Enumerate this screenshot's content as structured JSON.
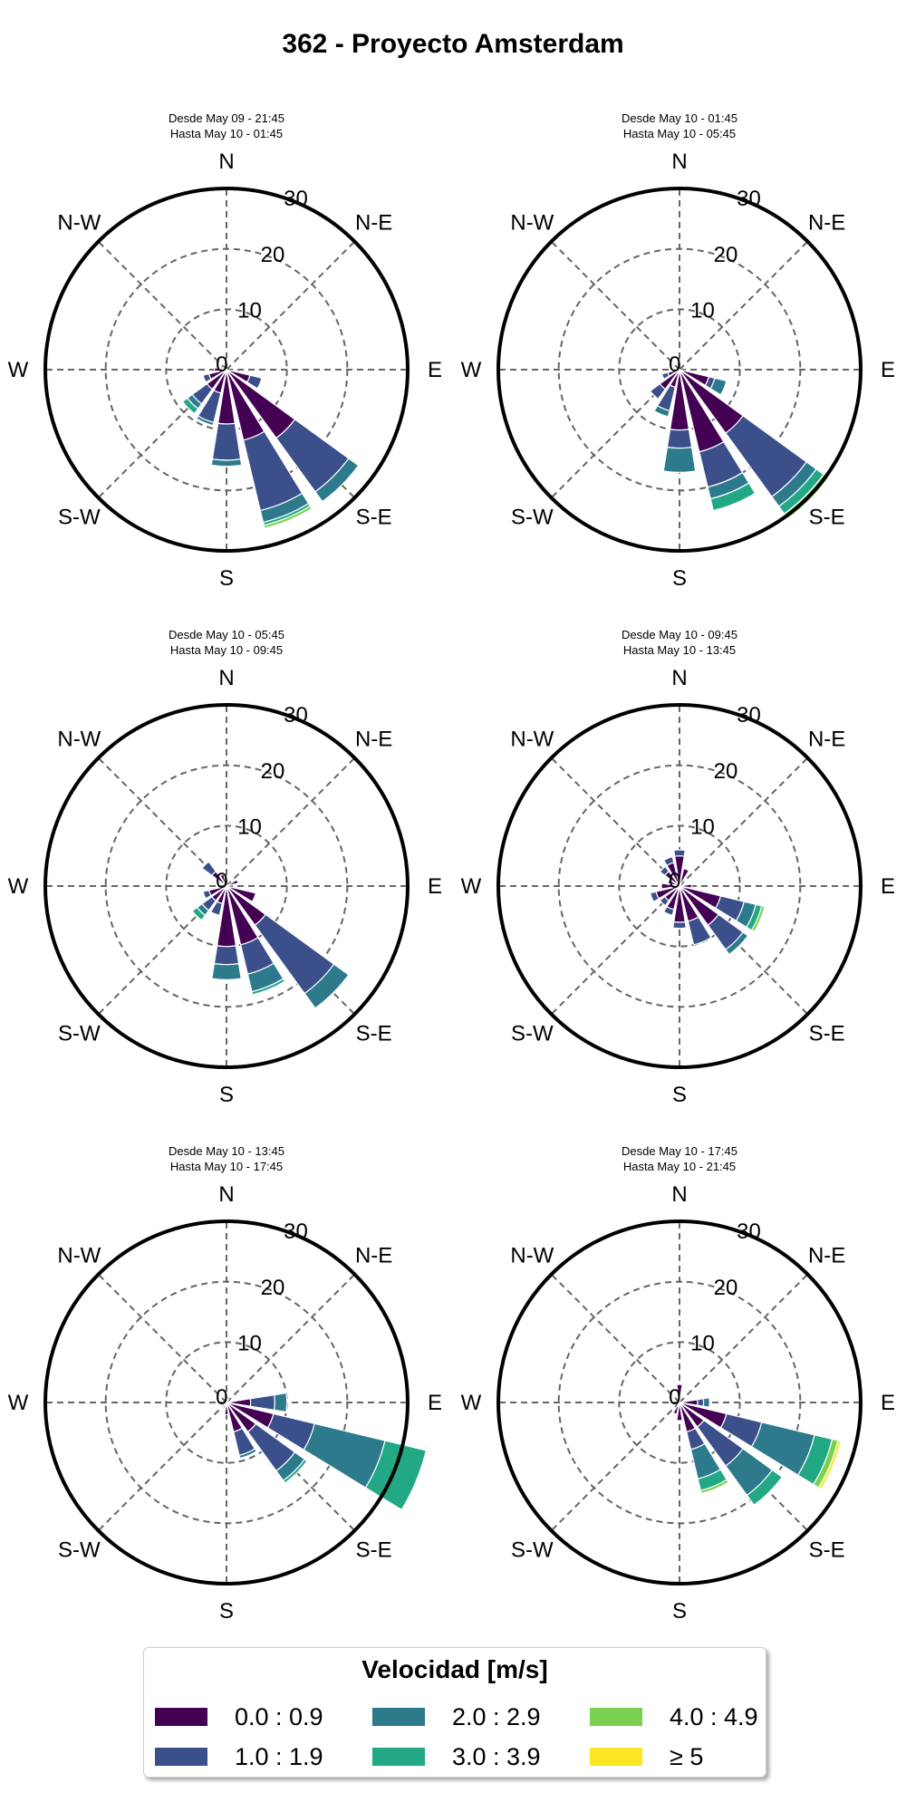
{
  "title": "362 - Proyecto Amsterdam",
  "colors": {
    "bins": [
      "#440154",
      "#3b4f8a",
      "#2c7a8c",
      "#22a884",
      "#7ad151",
      "#fde725"
    ],
    "grid": "#666666",
    "frame": "#000000"
  },
  "chart_data": [
    {
      "type": "windrose",
      "subtitle": [
        "Desde May 09 - 21:45",
        "Hasta May 10 - 01:45"
      ],
      "directions": [
        "N",
        "NNE",
        "NE",
        "ENE",
        "E",
        "ESE",
        "SE",
        "SSE",
        "S",
        "SSW",
        "SW",
        "WSW",
        "W",
        "WNW",
        "NW",
        "NNW"
      ],
      "rlim": [
        0,
        30
      ],
      "rticks": [
        "0",
        "10",
        "20",
        "30"
      ],
      "compass_labels": [
        "N",
        "N-E",
        "E",
        "S-E",
        "S",
        "S-W",
        "W",
        "N-W"
      ],
      "segments": {
        "ESE": [
          4,
          2
        ],
        "SE": [
          14,
          11,
          2
        ],
        "SSE": [
          12,
          12,
          2,
          0.5,
          0.5
        ],
        "S": [
          9,
          6,
          1
        ],
        "SSW": [
          4,
          5,
          0.5
        ],
        "SW": [
          4,
          3,
          1,
          1
        ],
        "WSW": [
          3,
          1
        ],
        "W": [
          2
        ],
        "WNW": [
          1
        ]
      }
    },
    {
      "type": "windrose",
      "subtitle": [
        "Desde May 10 - 01:45",
        "Hasta May 10 - 05:45"
      ],
      "directions": [
        "N",
        "NNE",
        "NE",
        "ENE",
        "E",
        "ESE",
        "SE",
        "SSE",
        "S",
        "SSW",
        "SW",
        "WSW",
        "W",
        "WNW",
        "NW",
        "NNW"
      ],
      "rlim": [
        0,
        30
      ],
      "rticks": [
        "0",
        "10",
        "20",
        "30"
      ],
      "compass_labels": [
        "N",
        "N-E",
        "E",
        "S-E",
        "S",
        "S-W",
        "W",
        "N-W"
      ],
      "segments": {
        "ESE": [
          5,
          1,
          2
        ],
        "SE": [
          13,
          13,
          2,
          1.5,
          1
        ],
        "SSE": [
          14,
          6,
          2,
          2
        ],
        "S": [
          10,
          3,
          4
        ],
        "SSW": [
          3,
          4,
          1
        ],
        "SW": [
          4,
          2
        ],
        "WSW": [
          2,
          1
        ],
        "W": [
          1
        ]
      }
    },
    {
      "type": "windrose",
      "subtitle": [
        "Desde May 10 - 05:45",
        "Hasta May 10 - 09:45"
      ],
      "directions": [
        "N",
        "NNE",
        "NE",
        "ENE",
        "E",
        "ESE",
        "SE",
        "SSE",
        "S",
        "SSW",
        "SW",
        "WSW",
        "W",
        "WNW",
        "NW",
        "NNW"
      ],
      "rlim": [
        0,
        30
      ],
      "rticks": [
        "0",
        "10",
        "20",
        "30"
      ],
      "compass_labels": [
        "N",
        "N-E",
        "E",
        "S-E",
        "S",
        "S-W",
        "W",
        "N-W"
      ],
      "segments": {
        "ENE": [
          2
        ],
        "ESE": [
          5
        ],
        "SE": [
          8,
          14,
          3
        ],
        "SSE": [
          10,
          5,
          3,
          0.5
        ],
        "S": [
          10,
          3,
          2.5
        ],
        "SSW": [
          3,
          2
        ],
        "SW": [
          3,
          2,
          1,
          1
        ],
        "WSW": [
          3,
          1
        ],
        "NW": [
          3,
          2
        ],
        "NNW": [
          2
        ]
      }
    },
    {
      "type": "windrose",
      "subtitle": [
        "Desde May 10 - 09:45",
        "Hasta May 10 - 13:45"
      ],
      "directions": [
        "N",
        "NNE",
        "NE",
        "ENE",
        "E",
        "ESE",
        "SE",
        "SSE",
        "S",
        "SSW",
        "SW",
        "WSW",
        "W",
        "WNW",
        "NW",
        "NNW"
      ],
      "rlim": [
        0,
        30
      ],
      "rticks": [
        "0",
        "10",
        "20",
        "30"
      ],
      "compass_labels": [
        "N",
        "N-E",
        "E",
        "S-E",
        "S",
        "S-W",
        "W",
        "N-W"
      ],
      "segments": {
        "NNE": [
          3
        ],
        "N": [
          5,
          1
        ],
        "NNW": [
          4,
          1
        ],
        "NW": [
          3,
          1
        ],
        "WNW": [
          2
        ],
        "W": [
          3
        ],
        "WSW": [
          4,
          1
        ],
        "SW": [
          3,
          1
        ],
        "SSW": [
          4,
          1
        ],
        "S": [
          6,
          1
        ],
        "SSE": [
          6,
          4
        ],
        "SE": [
          8,
          5,
          1
        ],
        "ESE": [
          7,
          4,
          2,
          1,
          0.5
        ],
        "E": [
          2
        ]
      }
    },
    {
      "type": "windrose",
      "subtitle": [
        "Desde May 10 - 13:45",
        "Hasta May 10 - 17:45"
      ],
      "directions": [
        "N",
        "NNE",
        "NE",
        "ENE",
        "E",
        "ESE",
        "SE",
        "SSE",
        "S",
        "SSW",
        "SW",
        "WSW",
        "W",
        "WNW",
        "NW",
        "NNW"
      ],
      "rlim": [
        0,
        30
      ],
      "rticks": [
        "0",
        "10",
        "20",
        "30"
      ],
      "compass_labels": [
        "N",
        "N-E",
        "E",
        "S-E",
        "S",
        "S-W",
        "W",
        "N-W"
      ],
      "segments": {
        "E": [
          4,
          4,
          2
        ],
        "ESE": [
          8,
          7,
          12,
          7
        ],
        "SE": [
          6,
          8,
          2,
          0.5
        ],
        "SSE": [
          5,
          4,
          0.5
        ],
        "S": [
          2
        ],
        "SSW": [
          1
        ],
        "SW": [
          1
        ],
        "NNE": [
          1
        ]
      }
    },
    {
      "type": "windrose",
      "subtitle": [
        "Desde May 10 - 17:45",
        "Hasta May 10 - 21:45"
      ],
      "directions": [
        "N",
        "NNE",
        "NE",
        "ENE",
        "E",
        "ESE",
        "SE",
        "SSE",
        "S",
        "SSW",
        "SW",
        "WSW",
        "W",
        "WNW",
        "NW",
        "NNW"
      ],
      "rlim": [
        0,
        30
      ],
      "rticks": [
        "0",
        "10",
        "20",
        "30"
      ],
      "compass_labels": [
        "N",
        "N-E",
        "E",
        "S-E",
        "S",
        "S-W",
        "W",
        "N-W"
      ],
      "segments": {
        "E": [
          3,
          1,
          1
        ],
        "ESE": [
          8,
          6,
          9,
          3,
          1,
          0.5
        ],
        "SE": [
          5,
          8,
          6,
          2
        ],
        "SSE": [
          5,
          3,
          5,
          2,
          0.5
        ],
        "S": [
          3
        ],
        "SSW": [
          2
        ],
        "N": [
          3
        ]
      }
    }
  ],
  "legend": {
    "title": "Velocidad [m/s]",
    "items": [
      {
        "label": "0.0 : 0.9",
        "color": "#440154"
      },
      {
        "label": "1.0 : 1.9",
        "color": "#3b4f8a"
      },
      {
        "label": "2.0 : 2.9",
        "color": "#2c7a8c"
      },
      {
        "label": "3.0 : 3.9",
        "color": "#22a884"
      },
      {
        "label": "4.0 : 4.9",
        "color": "#7ad151"
      },
      {
        "label": "≥  5",
        "color": "#fde725"
      }
    ]
  }
}
